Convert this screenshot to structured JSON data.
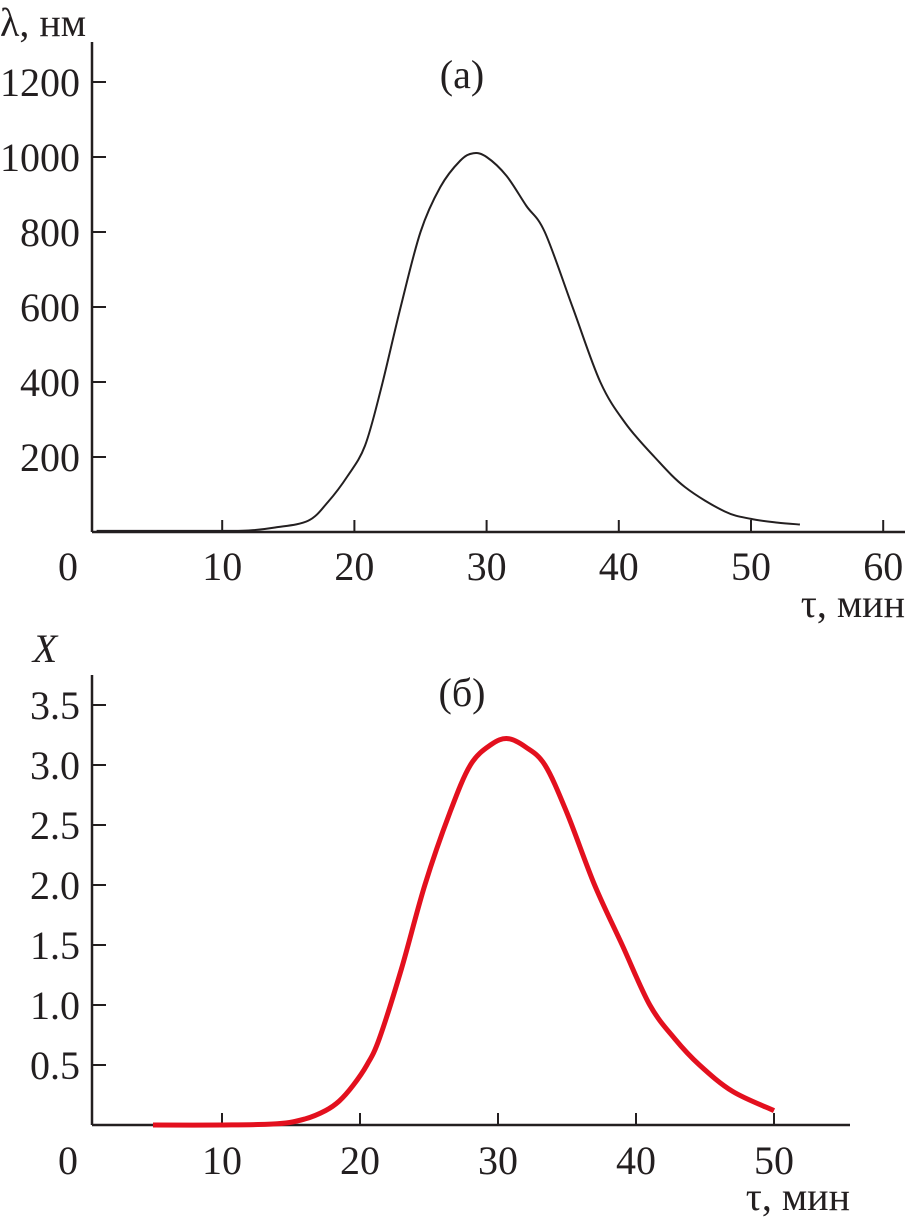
{
  "chart_data": [
    {
      "type": "line",
      "panel_label": "(а)",
      "ylabel": "λ, нм",
      "xlabel": "τ, мин",
      "xlim": [
        0,
        62
      ],
      "ylim": [
        0,
        1280
      ],
      "xticks": [
        0,
        10,
        20,
        30,
        40,
        50,
        60
      ],
      "yticks": [
        200,
        400,
        600,
        800,
        1000,
        1200
      ],
      "line_color": "#231f20",
      "grid": false,
      "x": [
        0.5,
        5,
        10,
        12,
        14,
        16.5,
        18,
        19.5,
        20.8,
        22,
        23.5,
        25,
        26.5,
        28,
        29,
        30,
        31.5,
        33,
        34.4,
        36.5,
        38.6,
        40.5,
        42.7,
        45,
        48,
        50,
        52,
        53.7
      ],
      "y": [
        3,
        3,
        3,
        4,
        12,
        30,
        80,
        150,
        230,
        380,
        600,
        800,
        920,
        990,
        1010,
        1000,
        950,
        870,
        800,
        600,
        400,
        290,
        200,
        120,
        55,
        35,
        25,
        20
      ]
    },
    {
      "type": "line",
      "panel_label": "(б)",
      "ylabel": "X",
      "xlabel": "τ, мин",
      "xlim": [
        0,
        55
      ],
      "ylim": [
        0,
        3.75
      ],
      "xticks": [
        0,
        10,
        20,
        30,
        40,
        50
      ],
      "yticks": [
        0.5,
        1.0,
        1.5,
        2.0,
        2.5,
        3.0,
        3.5
      ],
      "ytick_labels": [
        "0.5",
        "1.0",
        "1.5",
        "2.0",
        "2.5",
        "3.0",
        "3.5"
      ],
      "line_color": "#e3101e",
      "grid": false,
      "x": [
        5,
        10,
        14,
        16,
        17.5,
        18.5,
        19.5,
        20.5,
        21.4,
        23,
        24.7,
        26.5,
        28,
        29.5,
        30.7,
        32,
        33.4,
        35,
        37,
        39,
        41,
        42.8,
        44.6,
        47,
        50
      ],
      "y": [
        0,
        0,
        0.01,
        0.05,
        0.12,
        0.2,
        0.33,
        0.5,
        0.72,
        1.3,
        2.0,
        2.6,
        3.0,
        3.17,
        3.22,
        3.15,
        3.0,
        2.6,
        2.0,
        1.5,
        1.0,
        0.72,
        0.5,
        0.28,
        0.12
      ]
    }
  ]
}
